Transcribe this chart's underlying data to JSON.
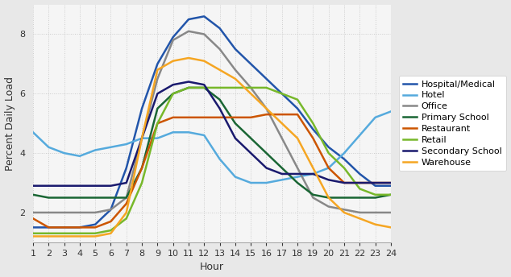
{
  "hours": [
    1,
    2,
    3,
    4,
    5,
    6,
    7,
    8,
    9,
    10,
    11,
    12,
    13,
    14,
    15,
    16,
    17,
    18,
    19,
    20,
    21,
    22,
    23,
    24
  ],
  "series": [
    {
      "label": "Hospital/Medical",
      "color": "#2255aa",
      "linewidth": 1.8,
      "values": [
        1.5,
        1.5,
        1.5,
        1.5,
        1.6,
        2.1,
        3.5,
        5.5,
        7.0,
        7.9,
        8.5,
        8.6,
        8.2,
        7.5,
        7.0,
        6.5,
        6.0,
        5.5,
        4.8,
        4.2,
        3.8,
        3.3,
        2.9,
        2.9
      ]
    },
    {
      "label": "Hotel",
      "color": "#55aadd",
      "linewidth": 1.8,
      "values": [
        4.7,
        4.2,
        4.0,
        3.9,
        4.1,
        4.2,
        4.3,
        4.5,
        4.5,
        4.7,
        4.7,
        4.6,
        3.8,
        3.2,
        3.0,
        3.0,
        3.1,
        3.2,
        3.3,
        3.5,
        4.0,
        4.6,
        5.2,
        5.4
      ]
    },
    {
      "label": "Office",
      "color": "#888888",
      "linewidth": 1.8,
      "values": [
        2.0,
        2.0,
        2.0,
        2.0,
        2.0,
        2.1,
        2.5,
        4.5,
        6.5,
        7.8,
        8.1,
        8.0,
        7.5,
        6.8,
        6.2,
        5.5,
        4.5,
        3.5,
        2.5,
        2.2,
        2.1,
        2.0,
        2.0,
        2.0
      ]
    },
    {
      "label": "Primary School",
      "color": "#1a6634",
      "linewidth": 1.8,
      "values": [
        2.6,
        2.5,
        2.5,
        2.5,
        2.5,
        2.5,
        2.5,
        3.5,
        5.5,
        6.0,
        6.2,
        6.2,
        5.8,
        5.0,
        4.5,
        4.0,
        3.5,
        3.0,
        2.6,
        2.5,
        2.5,
        2.5,
        2.5,
        2.6
      ]
    },
    {
      "label": "Restaurant",
      "color": "#cc5500",
      "linewidth": 1.8,
      "values": [
        1.8,
        1.5,
        1.5,
        1.5,
        1.5,
        1.7,
        2.3,
        3.5,
        5.0,
        5.2,
        5.2,
        5.2,
        5.2,
        5.2,
        5.2,
        5.3,
        5.3,
        5.3,
        4.5,
        3.5,
        3.0,
        3.0,
        3.0,
        3.0
      ]
    },
    {
      "label": "Retail",
      "color": "#77b82a",
      "linewidth": 1.8,
      "values": [
        1.3,
        1.3,
        1.3,
        1.3,
        1.3,
        1.4,
        1.8,
        3.0,
        5.0,
        6.0,
        6.2,
        6.2,
        6.2,
        6.2,
        6.2,
        6.2,
        6.0,
        5.8,
        5.0,
        4.0,
        3.5,
        2.8,
        2.6,
        2.6
      ]
    },
    {
      "label": "Secondary School",
      "color": "#1a1a6e",
      "linewidth": 1.8,
      "values": [
        2.9,
        2.9,
        2.9,
        2.9,
        2.9,
        2.9,
        3.0,
        4.5,
        6.0,
        6.3,
        6.4,
        6.3,
        5.5,
        4.5,
        4.0,
        3.5,
        3.3,
        3.3,
        3.3,
        3.1,
        3.0,
        3.0,
        3.0,
        3.0
      ]
    },
    {
      "label": "Warehouse",
      "color": "#f5a623",
      "linewidth": 1.8,
      "values": [
        1.2,
        1.2,
        1.2,
        1.2,
        1.2,
        1.3,
        2.0,
        4.5,
        6.8,
        7.1,
        7.2,
        7.1,
        6.8,
        6.5,
        6.0,
        5.5,
        5.0,
        4.5,
        3.5,
        2.5,
        2.0,
        1.8,
        1.6,
        1.5
      ]
    }
  ],
  "xlabel": "Hour",
  "ylabel": "Percent Daily Load",
  "ylim": [
    1.0,
    9.0
  ],
  "xlim": [
    1,
    24
  ],
  "yticks": [
    2,
    4,
    6,
    8
  ],
  "xticks": [
    1,
    2,
    3,
    4,
    5,
    6,
    7,
    8,
    9,
    10,
    11,
    12,
    13,
    14,
    15,
    16,
    17,
    18,
    19,
    20,
    21,
    22,
    23,
    24
  ],
  "background_color": "#e8e8e8",
  "plot_bg_color": "#f5f5f5",
  "grid_color": "#cccccc",
  "axis_fontsize": 9,
  "tick_fontsize": 8,
  "legend_fontsize": 8
}
